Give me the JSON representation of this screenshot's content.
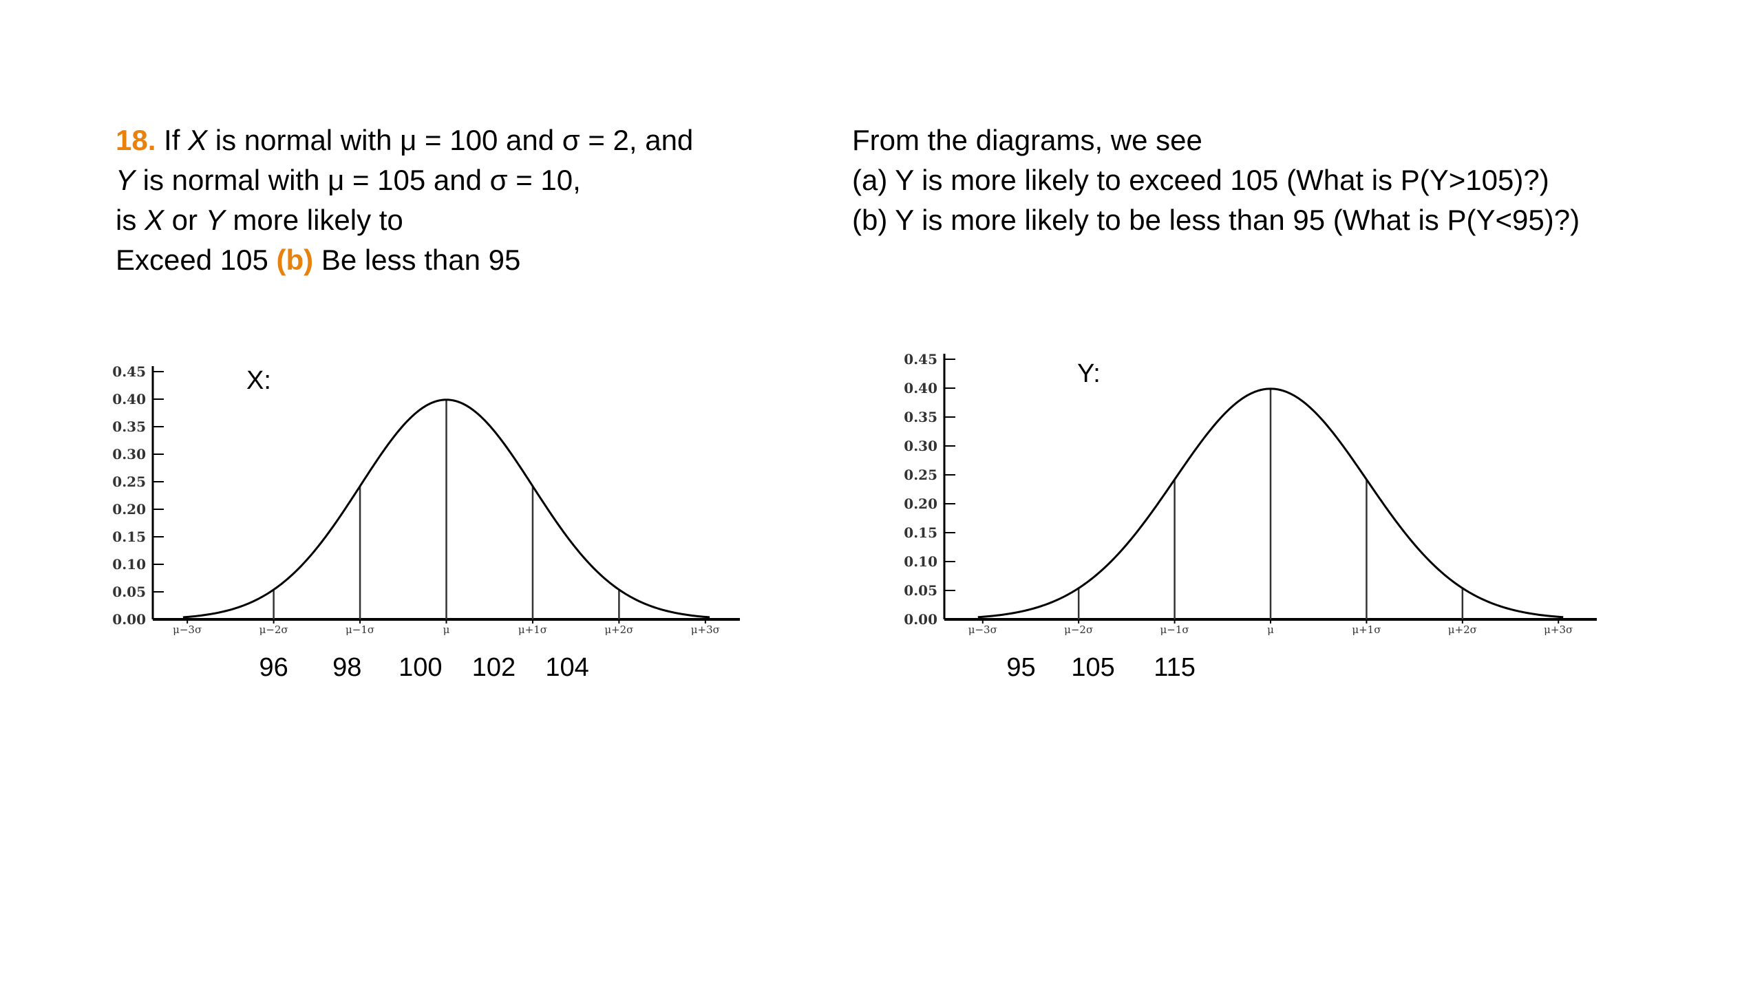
{
  "question": {
    "number": "18.",
    "line1_a": " If ",
    "line1_var": "X",
    "line1_b": " is normal with μ = 100 and σ = 2, and",
    "line2_var": "Y",
    "line2_b": " is normal with μ = 105 and σ = 10,",
    "line3_a": "is ",
    "line3_var1": "X",
    "line3_b": " or ",
    "line3_var2": "Y",
    "line3_c": " more likely to",
    "line4_a": "Exceed 105 ",
    "line4_b_label": "(b)",
    "line4_c": " Be less than 95"
  },
  "answer": {
    "line1": "From the diagrams, we see",
    "line2": "(a) Y is more likely to exceed 105 (What is P(Y>105)?)",
    "line3": "(b) Y is more likely to be less than 95 (What is P(Y<95)?)"
  },
  "chart_data": [
    {
      "type": "line",
      "label": "X:",
      "x": [
        -3,
        -2,
        -1,
        0,
        1,
        2,
        3
      ],
      "x_tick_labels": [
        "μ−3σ",
        "μ−2σ",
        "μ−1σ",
        "μ",
        "μ+1σ",
        "μ+2σ",
        "μ+3σ"
      ],
      "y_ticks": [
        "0.45",
        "0.40",
        "0.35",
        "0.30",
        "0.25",
        "0.20",
        "0.15",
        "0.10",
        "0.05",
        "0.00"
      ],
      "ylim": [
        0,
        0.45
      ],
      "xlim": [
        -3.4,
        3.4
      ],
      "vertical_lines_at": [
        -2,
        -1,
        0,
        1,
        2
      ],
      "values_below": [
        {
          "x": -2,
          "text": "96"
        },
        {
          "x": -1.15,
          "text": "98"
        },
        {
          "x": -0.3,
          "text": "100"
        },
        {
          "x": 0.55,
          "text": "102"
        },
        {
          "x": 1.4,
          "text": "104"
        }
      ]
    },
    {
      "type": "line",
      "label": "Y:",
      "x": [
        -3,
        -2,
        -1,
        0,
        1,
        2,
        3
      ],
      "x_tick_labels": [
        "μ−3σ",
        "μ−2σ",
        "μ−1σ",
        "μ",
        "μ+1σ",
        "μ+2σ",
        "μ+3σ"
      ],
      "y_ticks": [
        "0.45",
        "0.40",
        "0.35",
        "0.30",
        "0.25",
        "0.20",
        "0.15",
        "0.10",
        "0.05",
        "0.00"
      ],
      "ylim": [
        0,
        0.45
      ],
      "xlim": [
        -3.4,
        3.4
      ],
      "vertical_lines_at": [
        -2,
        -1,
        0,
        1,
        2
      ],
      "values_below": [
        {
          "x": -2.6,
          "text": "95"
        },
        {
          "x": -1.85,
          "text": "105"
        },
        {
          "x": -1.0,
          "text": "115"
        }
      ]
    }
  ]
}
